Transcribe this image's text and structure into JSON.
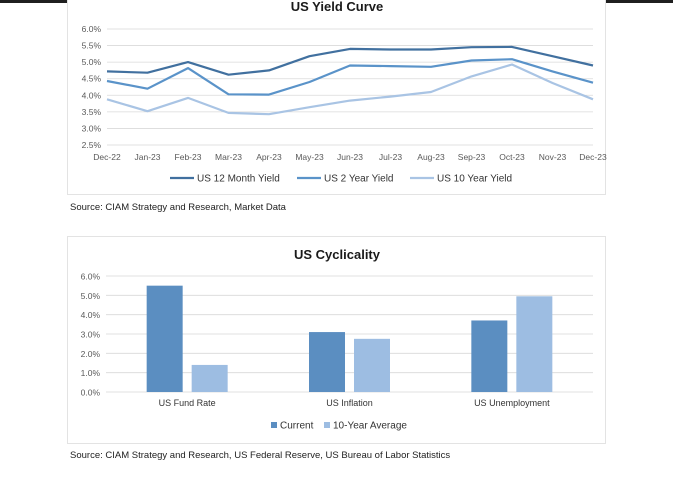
{
  "source_line1": "Source: CIAM Strategy and Research, Market Data",
  "source_line2": "Source: CIAM Strategy and Research, US Federal Reserve, US Bureau of Labor Statistics",
  "colors": {
    "us12m": "#41709f",
    "us2y": "#5a93c9",
    "us10y": "#a9c4e4",
    "current": "#5b8ec1",
    "avg10": "#9dbde2",
    "grid": "#d9d9d9"
  },
  "chart_data": [
    {
      "type": "line",
      "title": "US Yield Curve",
      "x": [
        "Dec-22",
        "Jan-23",
        "Feb-23",
        "Mar-23",
        "Apr-23",
        "May-23",
        "Jun-23",
        "Jul-23",
        "Aug-23",
        "Sep-23",
        "Oct-23",
        "Nov-23",
        "Dec-23"
      ],
      "y_ticks": [
        "2.5%",
        "3.0%",
        "3.5%",
        "4.0%",
        "4.5%",
        "5.0%",
        "5.5%",
        "6.0%"
      ],
      "ylim": [
        2.5,
        6.0
      ],
      "grid": true,
      "legend_position": "bottom",
      "series": [
        {
          "name": "US 12 Month Yield",
          "values": [
            4.72,
            4.68,
            5.0,
            4.62,
            4.75,
            5.18,
            5.4,
            5.38,
            5.38,
            5.45,
            5.46,
            5.18,
            4.9
          ]
        },
        {
          "name": "US 2 Year Yield",
          "values": [
            4.43,
            4.2,
            4.82,
            4.03,
            4.02,
            4.4,
            4.9,
            4.88,
            4.86,
            5.05,
            5.09,
            4.72,
            4.38
          ]
        },
        {
          "name": "US 10 Year Yield",
          "values": [
            3.88,
            3.52,
            3.92,
            3.47,
            3.43,
            3.64,
            3.84,
            3.96,
            4.1,
            4.57,
            4.93,
            4.37,
            3.88
          ]
        }
      ]
    },
    {
      "type": "bar",
      "title": "US Cyclicality",
      "categories": [
        "US Fund Rate",
        "US Inflation",
        "US Unemployment"
      ],
      "y_ticks": [
        "0.0%",
        "1.0%",
        "2.0%",
        "3.0%",
        "4.0%",
        "5.0%",
        "6.0%"
      ],
      "ylim": [
        0,
        6.0
      ],
      "grid": true,
      "legend_position": "bottom",
      "series": [
        {
          "name": "Current",
          "values": [
            5.5,
            3.1,
            3.7
          ]
        },
        {
          "name": "10-Year Average",
          "values": [
            1.4,
            2.75,
            4.95
          ]
        }
      ]
    }
  ]
}
